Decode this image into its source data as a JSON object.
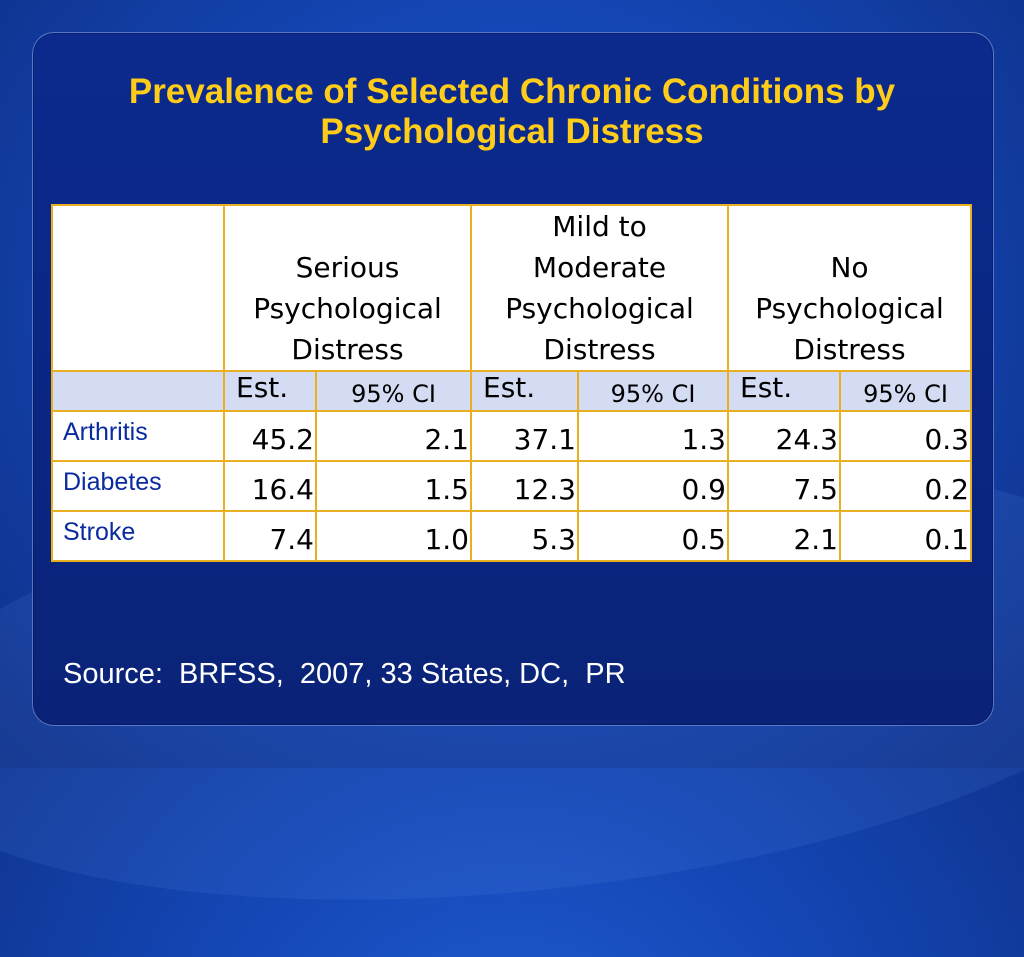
{
  "title": {
    "line1": "Prevalence of Selected Chronic Conditions by",
    "line2": "Psychological Distress"
  },
  "table": {
    "groups": [
      {
        "line1": "",
        "line2": "Serious",
        "line3": "Psychological",
        "line4": "Distress"
      },
      {
        "line1": "Mild to",
        "line2": "Moderate",
        "line3": "Psychological",
        "line4": "Distress"
      },
      {
        "line1": "",
        "line2": "No",
        "line3": "Psychological",
        "line4": "Distress"
      }
    ],
    "subheaders": {
      "est": "Est.",
      "ci": "95% CI"
    },
    "rows": [
      {
        "label": "Arthritis",
        "values": [
          "45.2",
          "2.1",
          "37.1",
          "1.3",
          "24.3",
          "0.3"
        ]
      },
      {
        "label": "Diabetes",
        "values": [
          "16.4",
          "1.5",
          "12.3",
          "0.9",
          "7.5",
          "0.2"
        ]
      },
      {
        "label": "Stroke",
        "values": [
          "7.4",
          "1.0",
          "5.3",
          "0.5",
          "2.1",
          "0.1"
        ]
      }
    ]
  },
  "source": "Source:  BRFSS,  2007, 33 States, DC,  PR",
  "colors": {
    "title": "#ffcc1a",
    "border": "#e8b020",
    "subheader_bg": "#d3dcf3",
    "label_text": "#0a2aa0",
    "background": "#1446b4"
  }
}
